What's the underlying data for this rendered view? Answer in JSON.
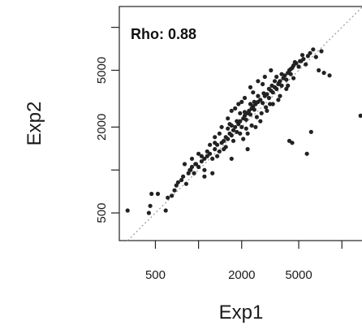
{
  "chart_data": {
    "type": "scatter",
    "title": "",
    "xlabel": "Exp1",
    "ylabel": "Exp2",
    "x_scale": "log",
    "y_scale": "log",
    "xlim": [
      280,
      14000
    ],
    "ylim": [
      320,
      14000
    ],
    "x_ticks": [
      500,
      1000,
      2000,
      5000,
      10000
    ],
    "x_tick_labels": [
      "500",
      "",
      "2000",
      "5000",
      ""
    ],
    "y_ticks": [
      500,
      1000,
      2000,
      5000,
      10000
    ],
    "y_tick_labels": [
      "500",
      "",
      "2000",
      "5000",
      ""
    ],
    "annotation": "Rho: 0.88",
    "reference_line": "y = x (dotted)",
    "marker_color": "#222222",
    "series": [
      {
        "points": [
          [
            320,
            520
          ],
          [
            450,
            500
          ],
          [
            460,
            560
          ],
          [
            470,
            680
          ],
          [
            520,
            680
          ],
          [
            590,
            520
          ],
          [
            610,
            640
          ],
          [
            650,
            660
          ],
          [
            680,
            720
          ],
          [
            700,
            780
          ],
          [
            720,
            820
          ],
          [
            760,
            850
          ],
          [
            780,
            900
          ],
          [
            820,
            800
          ],
          [
            850,
            950
          ],
          [
            880,
            1000
          ],
          [
            900,
            1050
          ],
          [
            930,
            950
          ],
          [
            960,
            1100
          ],
          [
            1000,
            1050
          ],
          [
            1050,
            1150
          ],
          [
            1100,
            1200
          ],
          [
            1150,
            1250
          ],
          [
            1200,
            1300
          ],
          [
            1250,
            1200
          ],
          [
            1300,
            1400
          ],
          [
            1350,
            1500
          ],
          [
            1400,
            1350
          ],
          [
            1450,
            1550
          ],
          [
            1500,
            1600
          ],
          [
            1550,
            1700
          ],
          [
            1600,
            1650
          ],
          [
            1650,
            1800
          ],
          [
            1700,
            1750
          ],
          [
            1750,
            1900
          ],
          [
            1800,
            2000
          ],
          [
            1850,
            1850
          ],
          [
            1900,
            2100
          ],
          [
            1950,
            2200
          ],
          [
            2000,
            2000
          ],
          [
            2050,
            2300
          ],
          [
            2100,
            2400
          ],
          [
            2150,
            2250
          ],
          [
            2200,
            2500
          ],
          [
            2250,
            2600
          ],
          [
            2300,
            2450
          ],
          [
            2350,
            2700
          ],
          [
            2400,
            2800
          ],
          [
            2450,
            2650
          ],
          [
            2500,
            2900
          ],
          [
            2600,
            3000
          ],
          [
            2700,
            3100
          ],
          [
            2800,
            2950
          ],
          [
            2900,
            3300
          ],
          [
            3000,
            3400
          ],
          [
            3100,
            3200
          ],
          [
            3200,
            3600
          ],
          [
            3300,
            3500
          ],
          [
            3400,
            3800
          ],
          [
            3500,
            3700
          ],
          [
            3600,
            4000
          ],
          [
            3700,
            4200
          ],
          [
            3800,
            3900
          ],
          [
            3900,
            4400
          ],
          [
            4000,
            4600
          ],
          [
            4100,
            4300
          ],
          [
            4200,
            4800
          ],
          [
            4300,
            5000
          ],
          [
            4400,
            4700
          ],
          [
            4500,
            5200
          ],
          [
            4600,
            5400
          ],
          [
            4800,
            5600
          ],
          [
            5000,
            5300
          ],
          [
            5200,
            5800
          ],
          [
            5400,
            6000
          ],
          [
            5600,
            5500
          ],
          [
            5800,
            6300
          ],
          [
            6000,
            6600
          ],
          [
            6300,
            7000
          ],
          [
            6600,
            6200
          ],
          [
            6900,
            5000
          ],
          [
            7200,
            6800
          ],
          [
            7500,
            4800
          ],
          [
            8200,
            4600
          ],
          [
            13500,
            2400
          ],
          [
            6100,
            1850
          ],
          [
            5700,
            1300
          ],
          [
            4500,
            1550
          ],
          [
            4300,
            1600
          ],
          [
            2200,
            1400
          ],
          [
            1300,
            1700
          ],
          [
            1500,
            1400
          ],
          [
            1700,
            1200
          ],
          [
            1100,
            900
          ],
          [
            1250,
            950
          ],
          [
            1600,
            2300
          ],
          [
            1700,
            2600
          ],
          [
            1900,
            2900
          ],
          [
            2100,
            3200
          ],
          [
            1800,
            2700
          ],
          [
            2400,
            3500
          ],
          [
            2000,
            3000
          ],
          [
            2300,
            3800
          ],
          [
            2600,
            4200
          ],
          [
            2900,
            4500
          ],
          [
            3200,
            5000
          ],
          [
            2800,
            4000
          ],
          [
            3500,
            4500
          ],
          [
            3000,
            2600
          ],
          [
            2700,
            2200
          ],
          [
            2500,
            2000
          ],
          [
            2200,
            1800
          ],
          [
            3300,
            2900
          ],
          [
            3600,
            3100
          ],
          [
            1400,
            1800
          ],
          [
            1200,
            1500
          ],
          [
            1000,
            1300
          ],
          [
            900,
            1200
          ],
          [
            800,
            1100
          ],
          [
            1100,
            1000
          ],
          [
            1450,
            2000
          ],
          [
            1650,
            2100
          ],
          [
            1350,
            1250
          ],
          [
            2050,
            1650
          ],
          [
            2350,
            2050
          ],
          [
            3400,
            4200
          ],
          [
            3800,
            4700
          ],
          [
            4200,
            3900
          ],
          [
            4600,
            4400
          ],
          [
            1550,
            1450
          ],
          [
            1750,
            1600
          ],
          [
            1950,
            1800
          ],
          [
            2150,
            1950
          ],
          [
            2550,
            2350
          ],
          [
            2750,
            2500
          ],
          [
            2950,
            2750
          ],
          [
            3150,
            2900
          ],
          [
            3700,
            3300
          ],
          [
            4100,
            3700
          ],
          [
            1050,
            1250
          ],
          [
            950,
            1100
          ],
          [
            870,
            1000
          ],
          [
            1150,
            1350
          ],
          [
            1300,
            1550
          ],
          [
            1600,
            1950
          ],
          [
            1850,
            2200
          ],
          [
            2100,
            2550
          ],
          [
            2450,
            3000
          ],
          [
            2850,
            3450
          ],
          [
            3250,
            3900
          ],
          [
            3650,
            4100
          ],
          [
            4400,
            5100
          ],
          [
            5100,
            5800
          ],
          [
            4700,
            5700
          ],
          [
            5300,
            6400
          ],
          [
            3100,
            3700
          ],
          [
            2600,
            3300
          ],
          [
            2300,
            2900
          ],
          [
            1950,
            2500
          ],
          [
            1700,
            2050
          ]
        ]
      }
    ]
  }
}
